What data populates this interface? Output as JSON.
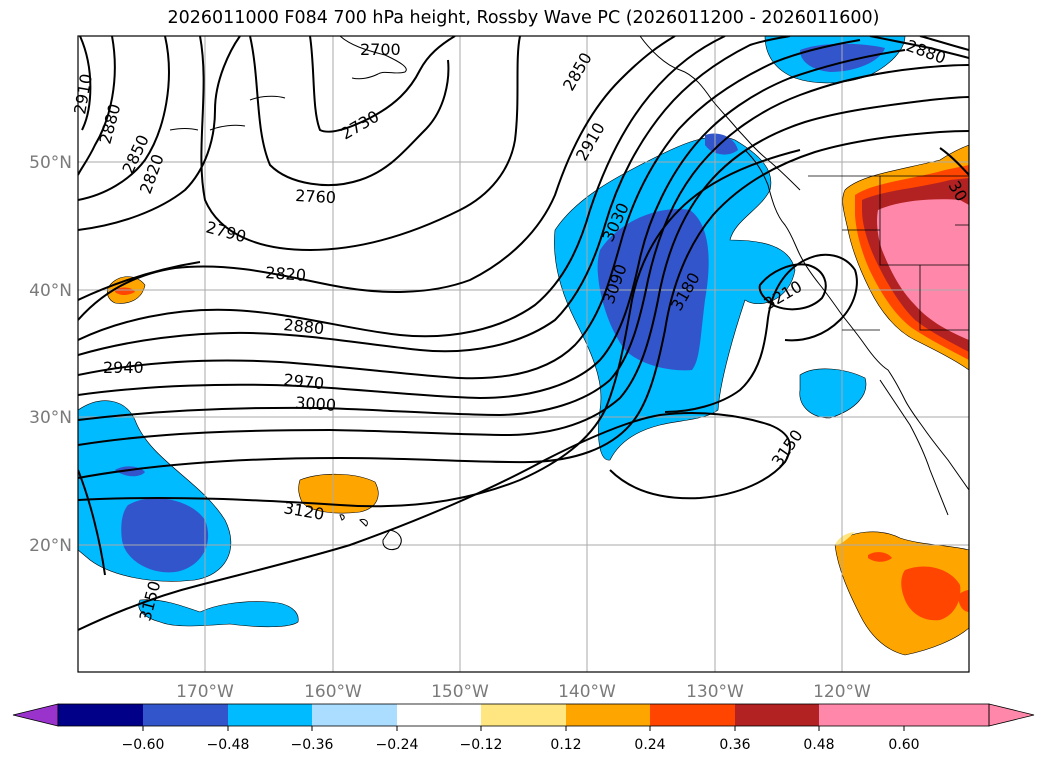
{
  "title": "2026011000 F084 700 hPa height, Rossby Wave PC (2026011200 - 2026011600)",
  "map": {
    "lon_range": [
      -180,
      -110
    ],
    "lat_range": [
      10,
      60
    ],
    "lat_labels": [
      "20°N",
      "30°N",
      "40°N",
      "50°N"
    ],
    "lon_labels": [
      "170°W",
      "160°W",
      "150°W",
      "140°W",
      "130°W",
      "120°W"
    ]
  },
  "contour_labels": [
    "2700",
    "2730",
    "2760",
    "2790",
    "2820",
    "2820",
    "2850",
    "2850",
    "2880",
    "2880",
    "2880",
    "2910",
    "2910",
    "2940",
    "2970",
    "3000",
    "3030",
    "3090",
    "3120",
    "3150",
    "3150",
    "3180",
    "3210",
    "30"
  ],
  "colorbar": {
    "ticks": [
      "−0.60",
      "−0.48",
      "−0.36",
      "−0.24",
      "−0.12",
      "0.12",
      "0.24",
      "0.36",
      "0.48",
      "0.60"
    ],
    "colors": [
      "#9933cc",
      "#000088",
      "#3355cc",
      "#00bbff",
      "#aaddff",
      "#ffffff",
      "#ffe680",
      "#ffa500",
      "#ff4500",
      "#b22222",
      "#ff88aa",
      "#ff88aa"
    ]
  }
}
